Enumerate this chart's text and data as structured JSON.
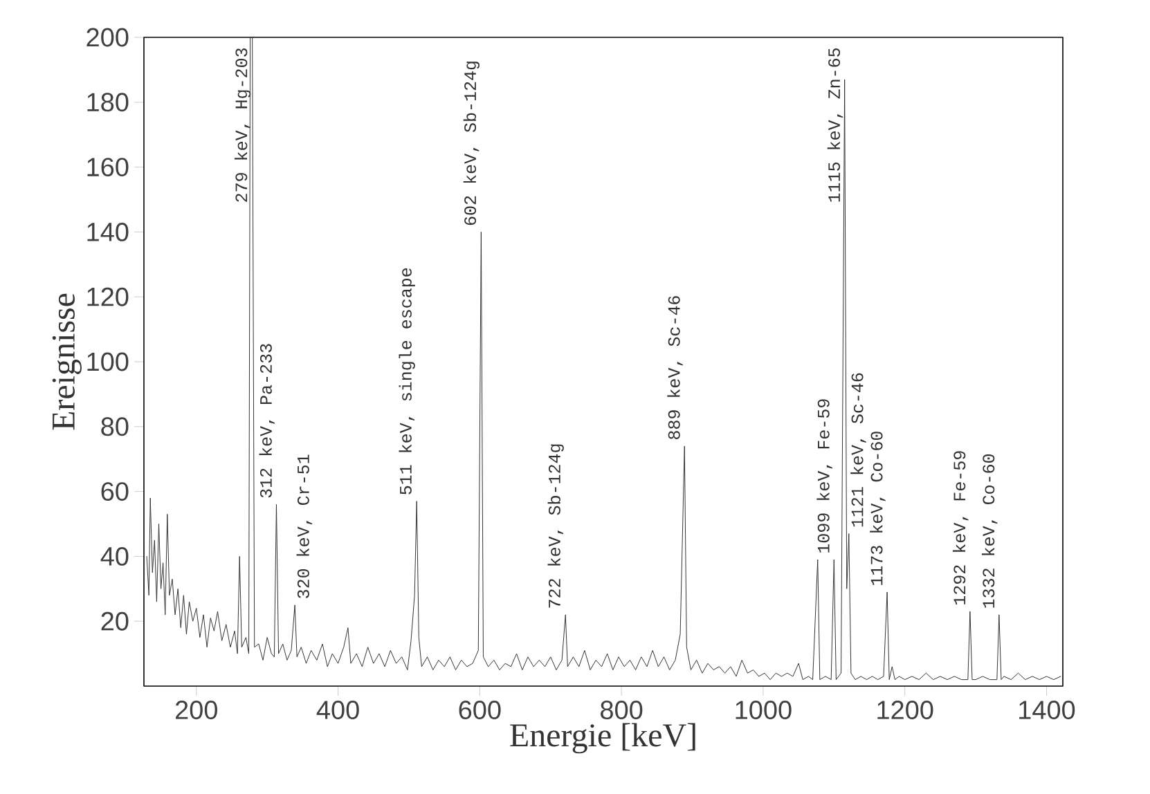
{
  "chart_data": {
    "type": "line",
    "xlabel": "Energie [keV]",
    "ylabel": "Ereignisse",
    "xlim": [
      126,
      1423
    ],
    "ylim": [
      0,
      200
    ],
    "xticks": [
      200,
      400,
      600,
      800,
      1000,
      1200,
      1400
    ],
    "yticks": [
      20,
      40,
      60,
      80,
      100,
      120,
      140,
      160,
      180,
      200
    ],
    "grid": false,
    "series": [
      {
        "color": "#333333",
        "x": [
          130,
          133,
          135,
          138,
          141,
          144,
          147,
          150,
          153,
          156,
          159,
          162,
          166,
          170,
          174,
          178,
          182,
          186,
          190,
          195,
          200,
          205,
          210,
          215,
          220,
          225,
          230,
          236,
          242,
          248,
          254,
          258,
          261,
          264,
          270,
          274,
          276,
          279,
          282,
          288,
          294,
          300,
          306,
          310,
          313,
          316,
          322,
          328,
          334,
          339,
          342,
          348,
          355,
          362,
          370,
          378,
          385,
          392,
          400,
          408,
          414,
          418,
          426,
          434,
          442,
          450,
          458,
          466,
          474,
          482,
          490,
          498,
          503,
          508,
          511,
          514,
          518,
          526,
          534,
          542,
          550,
          558,
          566,
          574,
          582,
          590,
          598,
          602,
          605,
          612,
          620,
          628,
          636,
          644,
          652,
          660,
          668,
          676,
          684,
          692,
          700,
          708,
          716,
          721,
          724,
          732,
          740,
          748,
          756,
          764,
          772,
          780,
          788,
          796,
          804,
          812,
          820,
          828,
          836,
          844,
          852,
          860,
          868,
          876,
          883,
          889,
          892,
          898,
          906,
          914,
          922,
          930,
          938,
          946,
          954,
          962,
          970,
          978,
          986,
          994,
          1002,
          1010,
          1018,
          1026,
          1034,
          1042,
          1050,
          1056,
          1064,
          1070,
          1077,
          1080,
          1088,
          1096,
          1100,
          1103,
          1110,
          1115,
          1118,
          1121,
          1124,
          1130,
          1138,
          1146,
          1154,
          1162,
          1170,
          1175,
          1178,
          1182,
          1186,
          1192,
          1200,
          1210,
          1220,
          1230,
          1240,
          1250,
          1260,
          1270,
          1280,
          1289,
          1292,
          1295,
          1300,
          1310,
          1320,
          1330,
          1333,
          1336,
          1340,
          1350,
          1360,
          1370,
          1380,
          1390,
          1400,
          1410,
          1420
        ],
        "values": [
          40,
          28,
          58,
          35,
          45,
          26,
          50,
          30,
          38,
          22,
          53,
          28,
          33,
          22,
          30,
          18,
          28,
          16,
          26,
          20,
          24,
          15,
          22,
          12,
          21,
          17,
          23,
          14,
          19,
          12,
          17,
          10,
          40,
          12,
          15,
          10,
          200,
          200,
          12,
          13,
          8,
          15,
          10,
          9,
          56,
          10,
          13,
          8,
          11,
          25,
          9,
          12,
          7,
          11,
          8,
          13,
          6,
          10,
          7,
          12,
          18,
          7,
          10,
          6,
          12,
          7,
          10,
          6,
          11,
          7,
          9,
          5,
          14,
          28,
          57,
          15,
          6,
          9,
          5,
          8,
          6,
          9,
          5,
          8,
          6,
          7,
          11,
          140,
          9,
          6,
          8,
          5,
          7,
          6,
          10,
          5,
          9,
          6,
          8,
          6,
          9,
          5,
          8,
          22,
          6,
          9,
          6,
          11,
          5,
          8,
          6,
          10,
          5,
          9,
          6,
          8,
          5,
          9,
          6,
          11,
          6,
          9,
          5,
          8,
          16,
          74,
          12,
          5,
          8,
          4,
          7,
          5,
          6,
          4,
          6,
          3,
          8,
          4,
          5,
          3,
          4,
          2,
          4,
          3,
          4,
          3,
          7,
          2,
          3,
          2,
          39,
          2,
          3,
          2,
          39,
          2,
          4,
          187,
          30,
          47,
          4,
          2,
          3,
          2,
          3,
          2,
          3,
          29,
          2,
          6,
          2,
          3,
          2,
          3,
          2,
          4,
          2,
          3,
          2,
          3,
          2,
          2,
          23,
          2,
          2,
          3,
          2,
          2,
          22,
          2,
          3,
          2,
          4,
          2,
          3,
          2,
          3,
          2,
          3
        ]
      }
    ],
    "annotations": [
      {
        "text": "279 keV, Hg-203",
        "x": 279,
        "y": 200
      },
      {
        "text": "312 keV, Pa-233",
        "x": 313,
        "y": 56
      },
      {
        "text": "320 keV, Cr-51",
        "x": 339,
        "y": 25
      },
      {
        "text": "511 keV, single escape",
        "x": 511,
        "y": 57
      },
      {
        "text": "602 keV, Sb-124g",
        "x": 602,
        "y": 140
      },
      {
        "text": "722 keV, Sb-124g",
        "x": 721,
        "y": 22
      },
      {
        "text": "889 keV, Sc-46",
        "x": 889,
        "y": 74
      },
      {
        "text": "1099 keV, Fe-59",
        "x": 1100,
        "y": 39
      },
      {
        "text": "1115 keV, Zn-65",
        "x": 1115,
        "y": 187
      },
      {
        "text": "1121 keV, Sc-46",
        "x": 1121,
        "y": 47
      },
      {
        "text": "1173 keV, Co-60",
        "x": 1175,
        "y": 29
      },
      {
        "text": "1292 keV, Fe-59",
        "x": 1292,
        "y": 23
      },
      {
        "text": "1332 keV, Co-60",
        "x": 1333,
        "y": 22
      }
    ]
  }
}
